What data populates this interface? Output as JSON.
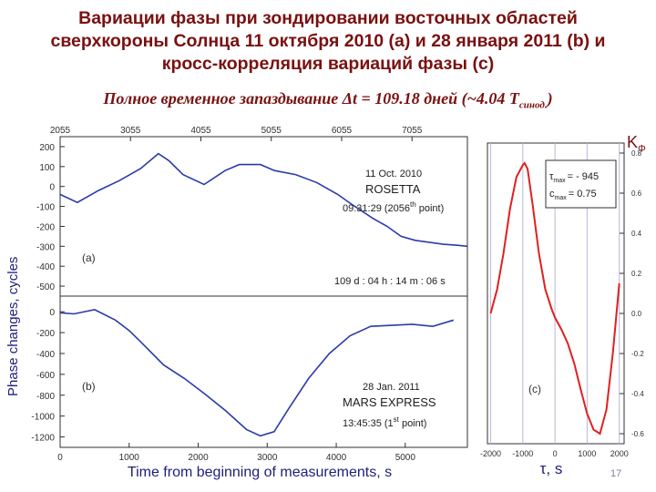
{
  "title_lines": [
    "Вариации фазы при зондировании восточных областей",
    "сверхкороны Солнца 11 октября 2010 (a) и 28 января 2011 (b) и",
    "кросс-корреляция вариаций фазы (c)"
  ],
  "subtitle": {
    "text": "Полное временное запаздывание  Δt = 109.18 дней  (~4.04 T",
    "sub": "синод.",
    "tail": ")"
  },
  "y_axis_label": "Phase changes,  cycles",
  "x_axis_label": "Time from beginning of measurements, s",
  "tau_label": "τ, s",
  "kphi_label": {
    "main": "K",
    "sub": "Φ"
  },
  "page_number": "17",
  "colors": {
    "title": "#7a1010",
    "series": "#2b3ba8",
    "corr": "#e02020",
    "axis_text": "#1e1e7a"
  },
  "chart_data": [
    {
      "type": "line",
      "panel_label": "(a)",
      "x_top_ticks": [
        "2055",
        "3055",
        "4055",
        "5055",
        "6055",
        "7055"
      ],
      "x_top_values": [
        2055,
        3055,
        4055,
        5055,
        6055,
        7055
      ],
      "yticks": [
        "200",
        "100",
        "0",
        "-100",
        "-200",
        "-300",
        "-400",
        "-500"
      ],
      "ytick_values": [
        200,
        100,
        0,
        -100,
        -200,
        -300,
        -400,
        -500
      ],
      "ylim": [
        -550,
        250
      ],
      "xlim": [
        2055,
        7842
      ],
      "annotations": {
        "date": "11 Oct. 2010",
        "craft": "ROSETTA",
        "time_prefix": "09:31:29 (2056",
        "time_sup": "th",
        "time_suffix": " point)",
        "delay": "109 d : 04 h : 14 m : 06 s"
      },
      "x": [
        2055,
        2300,
        2600,
        2900,
        3200,
        3450,
        3600,
        3800,
        4100,
        4400,
        4600,
        4900,
        5100,
        5400,
        5700,
        6000,
        6200,
        6500,
        6700,
        6900,
        7100,
        7300,
        7500,
        7700,
        7842
      ],
      "y": [
        -40,
        -80,
        -20,
        30,
        90,
        165,
        130,
        60,
        10,
        80,
        110,
        110,
        80,
        60,
        20,
        -40,
        -90,
        -160,
        -200,
        -250,
        -270,
        -280,
        -290,
        -295,
        -300
      ]
    },
    {
      "type": "line",
      "panel_label": "(b)",
      "x_bottom_ticks": [
        "0",
        "1000",
        "2000",
        "3000",
        "4000",
        "5000"
      ],
      "x_bottom_values": [
        0,
        1000,
        2000,
        3000,
        4000,
        5000
      ],
      "yticks": [
        "0",
        "-200",
        "-400",
        "-600",
        "-800",
        "-1000",
        "-1200"
      ],
      "ytick_values": [
        0,
        -200,
        -400,
        -600,
        -800,
        -1000,
        -1200
      ],
      "ylim": [
        -1300,
        150
      ],
      "xlim": [
        0,
        5900
      ],
      "annotations": {
        "date": "28 Jan. 2011",
        "craft": "MARS EXPRESS",
        "time_prefix": "13:45:35 (1",
        "time_sup": "st",
        "time_suffix": " point)"
      },
      "x": [
        0,
        200,
        500,
        800,
        1000,
        1200,
        1500,
        1800,
        2100,
        2400,
        2700,
        2900,
        3100,
        3300,
        3600,
        3900,
        4200,
        4500,
        4800,
        5100,
        5400,
        5700
      ],
      "y": [
        -10,
        -20,
        20,
        -80,
        -180,
        -310,
        -510,
        -640,
        -790,
        -950,
        -1130,
        -1190,
        -1150,
        -940,
        -640,
        -400,
        -230,
        -140,
        -130,
        -120,
        -140,
        -80
      ]
    },
    {
      "type": "line",
      "panel_label": "(c)",
      "xticks": [
        "-2000",
        "-1000",
        "0",
        "1000",
        "2000"
      ],
      "xtick_values": [
        -2000,
        -1000,
        0,
        1000,
        2000
      ],
      "yticks": [
        "0.8",
        "0.6",
        "0.4",
        "0.2",
        "0.0",
        "-0.2",
        "-0.4",
        "-0.6"
      ],
      "ytick_values": [
        0.8,
        0.6,
        0.4,
        0.2,
        0.0,
        -0.2,
        -0.4,
        -0.6
      ],
      "ylim": [
        -0.65,
        0.85
      ],
      "xlim": [
        -2100,
        2150
      ],
      "legend": {
        "tau_label": "τ",
        "tau_sub": "max",
        "tau_value": "= - 945",
        "c_label": "c",
        "c_sub": "max",
        "c_value": "=  0.75"
      },
      "x": [
        -2000,
        -1800,
        -1600,
        -1400,
        -1200,
        -1000,
        -945,
        -850,
        -700,
        -500,
        -300,
        -100,
        0,
        200,
        400,
        600,
        800,
        1000,
        1200,
        1400,
        1600,
        1800,
        2000
      ],
      "y": [
        0.0,
        0.12,
        0.3,
        0.52,
        0.68,
        0.74,
        0.75,
        0.72,
        0.55,
        0.3,
        0.12,
        0.02,
        -0.02,
        -0.08,
        -0.15,
        -0.25,
        -0.38,
        -0.5,
        -0.58,
        -0.6,
        -0.48,
        -0.2,
        0.15
      ]
    }
  ]
}
